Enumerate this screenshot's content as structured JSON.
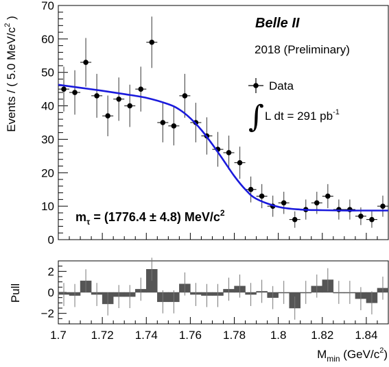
{
  "chart_data": [
    {
      "type": "scatter",
      "panel": "main",
      "title": "",
      "ylabel_main": "Events / ( 5.0 MeV/c",
      "ylabel_sup": "2",
      "ylabel_close": " )",
      "ylim": [
        0,
        70
      ],
      "xlim": [
        1.7,
        1.85
      ],
      "yticks": [
        "0",
        "10",
        "20",
        "30",
        "40",
        "50",
        "60",
        "70"
      ],
      "experiment": "Belle II",
      "subtitle": "2018 (Preliminary)",
      "legend_label": "Data",
      "lumi_integral": "∫",
      "lumi_text": "L dt = 291 pb",
      "lumi_sup": "-1",
      "fit_label_m": "m",
      "fit_label_sub": "τ",
      "fit_label_value": " = (1776.4  ± 4.8) MeV/c",
      "fit_label_sup": "2",
      "fit_color": "#1a1adc",
      "data_x": [
        1.7025,
        1.7075,
        1.7125,
        1.7175,
        1.7225,
        1.7275,
        1.7325,
        1.7375,
        1.7425,
        1.7475,
        1.7525,
        1.7575,
        1.7625,
        1.7675,
        1.7725,
        1.7775,
        1.7825,
        1.7875,
        1.7925,
        1.7975,
        1.8025,
        1.8075,
        1.8125,
        1.8175,
        1.8225,
        1.8275,
        1.8325,
        1.8375,
        1.8425,
        1.8475
      ],
      "data_y": [
        45,
        44,
        53,
        43,
        37,
        42,
        40,
        45,
        59,
        35,
        34,
        43,
        35,
        31,
        27,
        26,
        23,
        15,
        13,
        10,
        11,
        6,
        9,
        11,
        13,
        9,
        9,
        7,
        6,
        10
      ],
      "fit_x": [
        1.7,
        1.71,
        1.72,
        1.73,
        1.74,
        1.75,
        1.755,
        1.76,
        1.765,
        1.77,
        1.775,
        1.78,
        1.785,
        1.79,
        1.8,
        1.81,
        1.82,
        1.83,
        1.84,
        1.85
      ],
      "fit_y": [
        46.3,
        45.4,
        44.5,
        43.5,
        42.4,
        40.5,
        38.9,
        36.3,
        32.8,
        28.5,
        23.8,
        19.0,
        15.0,
        12.2,
        9.8,
        9.0,
        8.8,
        8.7,
        8.7,
        8.7
      ]
    },
    {
      "type": "bar",
      "panel": "pull",
      "ylabel": "Pull",
      "xlabel": "M",
      "xlabel_sub": "min",
      "xlabel_unit": " (GeV/c",
      "xlabel_sup": "2",
      "xlabel_close": ")",
      "ylim": [
        -3,
        3
      ],
      "yticks": [
        "−2",
        "0",
        "2"
      ],
      "xticks": [
        "1.7",
        "1.72",
        "1.74",
        "1.76",
        "1.78",
        "1.8",
        "1.82",
        "1.84"
      ],
      "bar_color": "#555555",
      "pulls": [
        -0.2,
        -0.3,
        1.1,
        -0.2,
        -1.1,
        -0.4,
        -0.4,
        0.3,
        2.2,
        -0.9,
        -0.9,
        0.8,
        -0.2,
        -0.3,
        -0.3,
        0.3,
        0.6,
        -0.2,
        0.1,
        -0.5,
        0.0,
        -1.5,
        0.0,
        0.6,
        1.2,
        0.0,
        0.0,
        -0.6,
        -1.0,
        0.4
      ]
    }
  ]
}
